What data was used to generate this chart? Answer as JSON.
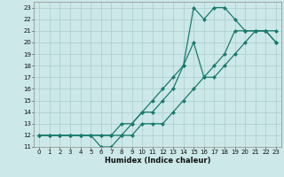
{
  "xlabel": "Humidex (Indice chaleur)",
  "bg_color": "#cce8e8",
  "line_color": "#1a7a6e",
  "grid_color": "#aacccc",
  "xlim": [
    -0.5,
    23.5
  ],
  "ylim": [
    11,
    23.5
  ],
  "xticks": [
    0,
    1,
    2,
    3,
    4,
    5,
    6,
    7,
    8,
    9,
    10,
    11,
    12,
    13,
    14,
    15,
    16,
    17,
    18,
    19,
    20,
    21,
    22,
    23
  ],
  "yticks": [
    11,
    12,
    13,
    14,
    15,
    16,
    17,
    18,
    19,
    20,
    21,
    22,
    23
  ],
  "line1_x": [
    0,
    1,
    2,
    3,
    4,
    5,
    6,
    7,
    8,
    9,
    10,
    11,
    12,
    13,
    14,
    15,
    16,
    17,
    18,
    19,
    20,
    21,
    22,
    23
  ],
  "line1_y": [
    12,
    12,
    12,
    12,
    12,
    12,
    12,
    12,
    13,
    13,
    14,
    14,
    15,
    16,
    18,
    23,
    22,
    23,
    23,
    22,
    21,
    21,
    21,
    20
  ],
  "line2_x": [
    0,
    1,
    2,
    3,
    4,
    5,
    6,
    7,
    8,
    9,
    10,
    11,
    12,
    13,
    14,
    15,
    16,
    17,
    18,
    19,
    20,
    21,
    22,
    23
  ],
  "line2_y": [
    12,
    12,
    12,
    12,
    12,
    12,
    11,
    11,
    12,
    13,
    14,
    15,
    16,
    17,
    18,
    20,
    17,
    18,
    19,
    21,
    21,
    21,
    21,
    21
  ],
  "line3_x": [
    0,
    1,
    2,
    3,
    4,
    5,
    6,
    7,
    8,
    9,
    10,
    11,
    12,
    13,
    14,
    15,
    16,
    17,
    18,
    19,
    20,
    21,
    22,
    23
  ],
  "line3_y": [
    12,
    12,
    12,
    12,
    12,
    12,
    12,
    12,
    12,
    12,
    13,
    13,
    13,
    14,
    15,
    16,
    17,
    17,
    18,
    19,
    20,
    21,
    21,
    20
  ],
  "tick_fontsize": 5.0,
  "xlabel_fontsize": 6.0,
  "marker_size": 2.5,
  "linewidth": 0.9
}
